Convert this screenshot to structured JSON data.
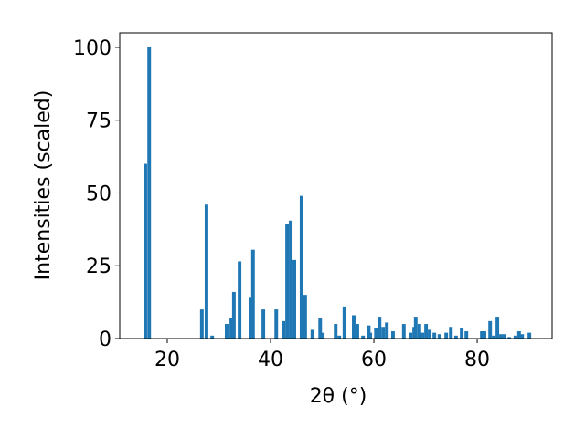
{
  "chart_data": {
    "type": "bar",
    "xlabel": "2θ (°)",
    "ylabel": "Intensities (scaled)",
    "color": "#1f77b4",
    "x": [
      15.75,
      16.5,
      26.7,
      27.6,
      28.7,
      31.5,
      32.4,
      32.9,
      34.0,
      36.1,
      36.6,
      38.6,
      41.1,
      42.5,
      43.2,
      43.9,
      44.6,
      46.0,
      46.7,
      48.1,
      49.6,
      50.1,
      52.6,
      53.3,
      54.3,
      56.1,
      56.8,
      57.9,
      59.0,
      59.3,
      60.4,
      61.1,
      61.8,
      62.5,
      63.7,
      65.8,
      67.1,
      67.8,
      68.1,
      68.8,
      69.4,
      70.1,
      70.8,
      71.7,
      72.7,
      74.0,
      74.9,
      75.9,
      77.0,
      77.9,
      80.9,
      81.4,
      82.5,
      83.2,
      83.9,
      84.6,
      85.3,
      86.2,
      87.4,
      88.1,
      88.7,
      90.1
    ],
    "values": [
      60,
      100,
      10,
      46,
      1,
      5,
      7,
      16,
      26.5,
      14,
      30.5,
      10,
      10,
      6,
      39.5,
      40.5,
      27,
      49,
      15,
      3,
      7,
      2,
      5,
      1,
      11,
      8,
      5,
      1,
      4.5,
      2,
      3.5,
      7.5,
      4,
      5.5,
      2.5,
      5,
      2,
      4,
      7.5,
      5,
      2,
      5,
      3,
      2,
      1.5,
      2,
      4,
      1,
      3.5,
      2.5,
      2.5,
      2.5,
      6,
      1,
      7.5,
      1.5,
      1.5,
      0.5,
      1,
      2.5,
      1.5,
      2
    ],
    "xlim": [
      10.8,
      94.5
    ],
    "xticks": [
      20,
      40,
      60,
      80
    ],
    "ylim": [
      0,
      105
    ],
    "yticks": [
      0,
      25,
      50,
      75,
      100
    ]
  }
}
